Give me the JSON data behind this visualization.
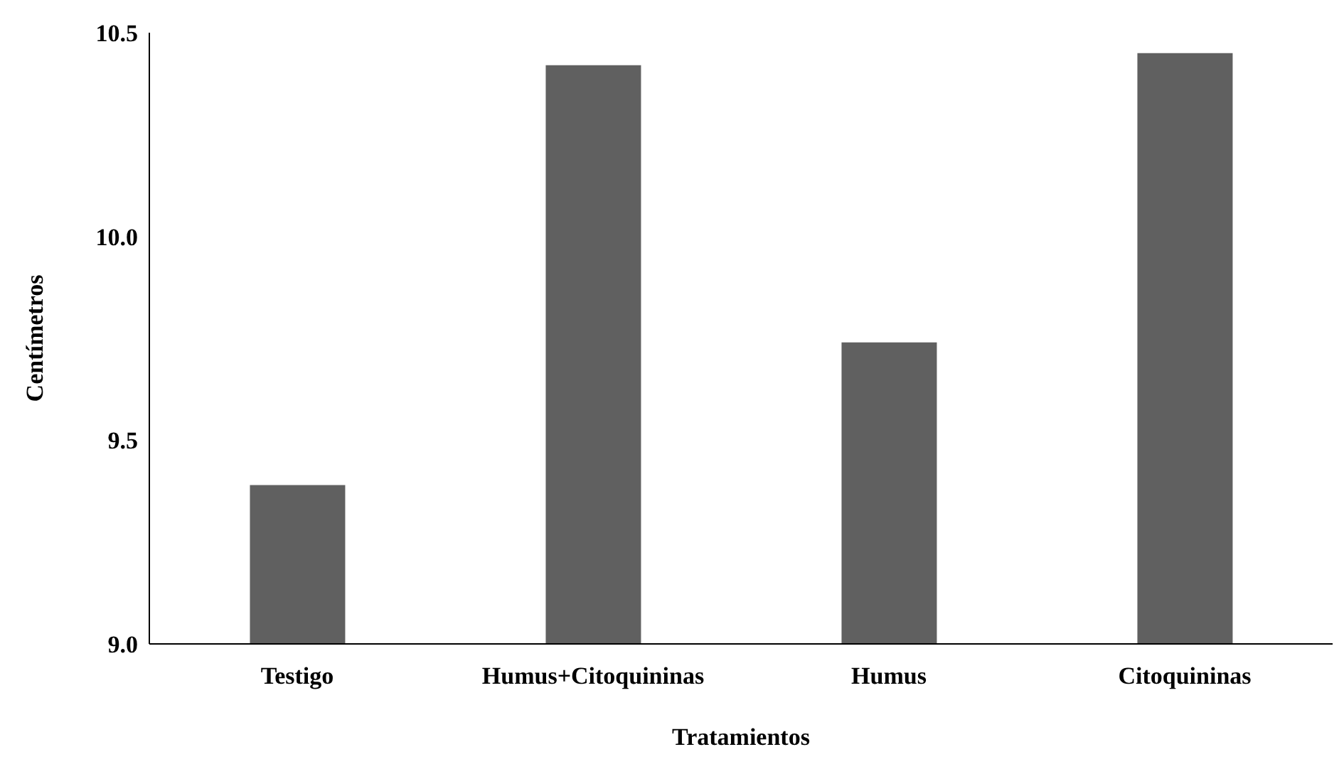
{
  "chart_data": {
    "type": "bar",
    "xlabel": "Tratamientos",
    "ylabel": "Centímetros",
    "categories": [
      "Testigo",
      "Humus+Citoquininas",
      "Humus",
      "Citoquininas"
    ],
    "values": [
      9.39,
      10.42,
      9.74,
      10.45
    ],
    "color": "#606060",
    "ylim": [
      9.0,
      10.5
    ],
    "yticks": [
      {
        "value": 9.0,
        "label": "9.0"
      },
      {
        "value": 9.5,
        "label": "9.5"
      },
      {
        "value": 10.0,
        "label": "10.0"
      },
      {
        "value": 10.5,
        "label": "10.5"
      }
    ],
    "grid": false,
    "legend": false
  }
}
